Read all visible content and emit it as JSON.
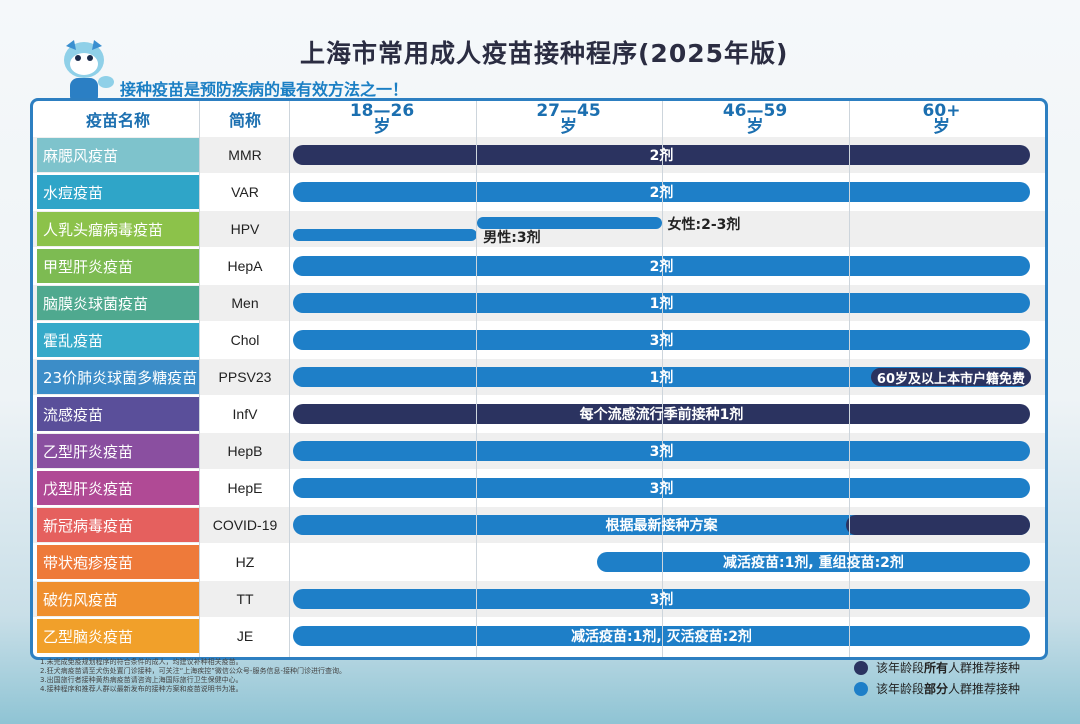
{
  "title": "上海市常用成人疫苗接种程序(2025年版)",
  "slogan": "接种疫苗是预防疾病的最有效方法之一！",
  "headers": {
    "name": "疫苗名称",
    "abbr": "简称"
  },
  "ages": [
    {
      "range": "18—26",
      "unit": "岁"
    },
    {
      "range": "27—45",
      "unit": "岁"
    },
    {
      "range": "46—59",
      "unit": "岁"
    },
    {
      "range": "60+",
      "unit": "岁"
    }
  ],
  "colors": {
    "all": "#2b3360",
    "part": "#1e7fc8"
  },
  "rows": [
    {
      "name": "麻腮风疫苗",
      "abbr": "MMR",
      "color": "#7ec3cc",
      "bars": [
        {
          "from": 0,
          "to": 4,
          "kind": "all",
          "text": "2剂"
        }
      ]
    },
    {
      "name": "水痘疫苗",
      "abbr": "VAR",
      "color": "#2fa5c8",
      "bars": [
        {
          "from": 0,
          "to": 4,
          "kind": "part",
          "text": "2剂"
        }
      ]
    },
    {
      "name": "人乳头瘤病毒疫苗",
      "abbr": "HPV",
      "color": "#8cc24a",
      "bars": [
        {
          "from": 0,
          "to": 1,
          "kind": "part",
          "text": ""
        },
        {
          "from": 1,
          "to": 2,
          "kind": "part",
          "text": ""
        }
      ],
      "male_label": "男性:3剂",
      "female_label": "女性:2-3剂"
    },
    {
      "name": "甲型肝炎疫苗",
      "abbr": "HepA",
      "color": "#7dbb52",
      "bars": [
        {
          "from": 0,
          "to": 4,
          "kind": "part",
          "text": "2剂"
        }
      ]
    },
    {
      "name": "脑膜炎球菌疫苗",
      "abbr": "Men",
      "color": "#4fa98f",
      "bars": [
        {
          "from": 0,
          "to": 4,
          "kind": "part",
          "text": "1剂"
        }
      ]
    },
    {
      "name": "霍乱疫苗",
      "abbr": "Chol",
      "color": "#36aac9",
      "bars": [
        {
          "from": 0,
          "to": 4,
          "kind": "part",
          "text": "3剂"
        }
      ]
    },
    {
      "name": "23价肺炎球菌多糖疫苗",
      "abbr": "PPSV23",
      "color": "#3c8dc8",
      "bars": [
        {
          "from": 0,
          "to": 4,
          "kind": "part",
          "text": "1剂"
        }
      ],
      "tag": "60岁及以上本市户籍免费"
    },
    {
      "name": "流感疫苗",
      "abbr": "InfV",
      "color": "#5a4f9a",
      "bars": [
        {
          "from": 0,
          "to": 4,
          "kind": "all",
          "text": "每个流感流行季前接种1剂"
        }
      ]
    },
    {
      "name": "乙型肝炎疫苗",
      "abbr": "HepB",
      "color": "#8a4fa0",
      "bars": [
        {
          "from": 0,
          "to": 4,
          "kind": "part",
          "text": "3剂"
        }
      ]
    },
    {
      "name": "戊型肝炎疫苗",
      "abbr": "HepE",
      "color": "#b04a95",
      "bars": [
        {
          "from": 0,
          "to": 4,
          "kind": "part",
          "text": "3剂"
        }
      ]
    },
    {
      "name": "新冠病毒疫苗",
      "abbr": "COVID-19",
      "color": "#e5605e",
      "bars": [
        {
          "from": 0,
          "to": 4,
          "kind": "part",
          "text": "根据最新接种方案"
        }
      ],
      "overlay_all_from": 3.0
    },
    {
      "name": "带状疱疹疫苗",
      "abbr": "HZ",
      "color": "#ee7a3a",
      "bars": [
        {
          "from": 1.65,
          "to": 4,
          "kind": "part",
          "text": "减活疫苗:1剂, 重组疫苗:2剂"
        }
      ]
    },
    {
      "name": "破伤风疫苗",
      "abbr": "TT",
      "color": "#ef8f2e",
      "bars": [
        {
          "from": 0,
          "to": 4,
          "kind": "part",
          "text": "3剂"
        }
      ]
    },
    {
      "name": "乙型脑炎疫苗",
      "abbr": "JE",
      "color": "#f1a02a",
      "bars": [
        {
          "from": 0,
          "to": 4,
          "kind": "part",
          "text": "减活疫苗:1剂, 灭活疫苗:2剂"
        }
      ]
    }
  ],
  "notes": [
    "1.未完成免疫规划程序的符合条件的成人，均建议补种相关疫苗。",
    "2.狂犬病疫苗请至犬伤处置门诊接种，可关注“上海疾控”微信公众号-服务信息-接种门诊进行查询。",
    "3.出国旅行者接种黄热病疫苗请咨询上海国际旅行卫生保健中心。",
    "4.接种程序和推荐人群以最新发布的接种方案和疫苗说明书为准。"
  ],
  "legend": [
    {
      "kind": "all",
      "pre": "该年龄段",
      "em": "所有",
      "post": "人群推荐接种"
    },
    {
      "kind": "part",
      "pre": "该年龄段",
      "em": "部分",
      "post": "人群推荐接种"
    }
  ]
}
